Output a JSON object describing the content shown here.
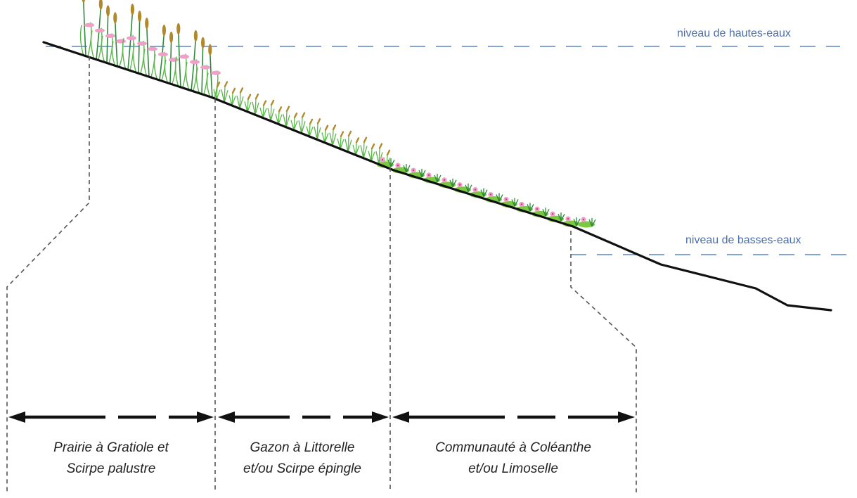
{
  "levels": {
    "high": "niveau de hautes-eaux",
    "low": "niveau de basses-eaux"
  },
  "zones": [
    {
      "line1": "Prairie à Gratiole et",
      "line2": "Scirpe palustre"
    },
    {
      "line1": "Gazon à Littorelle",
      "line2": "et/ou Scirpe épingle"
    },
    {
      "line1": "Communauté à Coléanthe",
      "line2": "et/ou Limoselle"
    }
  ],
  "colors": {
    "water_line": "#5b86c5",
    "level_text": "#4a6fb0",
    "ground": "#111111",
    "guide": "#555555",
    "stem": "#58b848",
    "stem_dark": "#2e8a3a",
    "spike": "#b08a2a",
    "flower": "#f0a0c8",
    "pad": "#7cc843"
  }
}
